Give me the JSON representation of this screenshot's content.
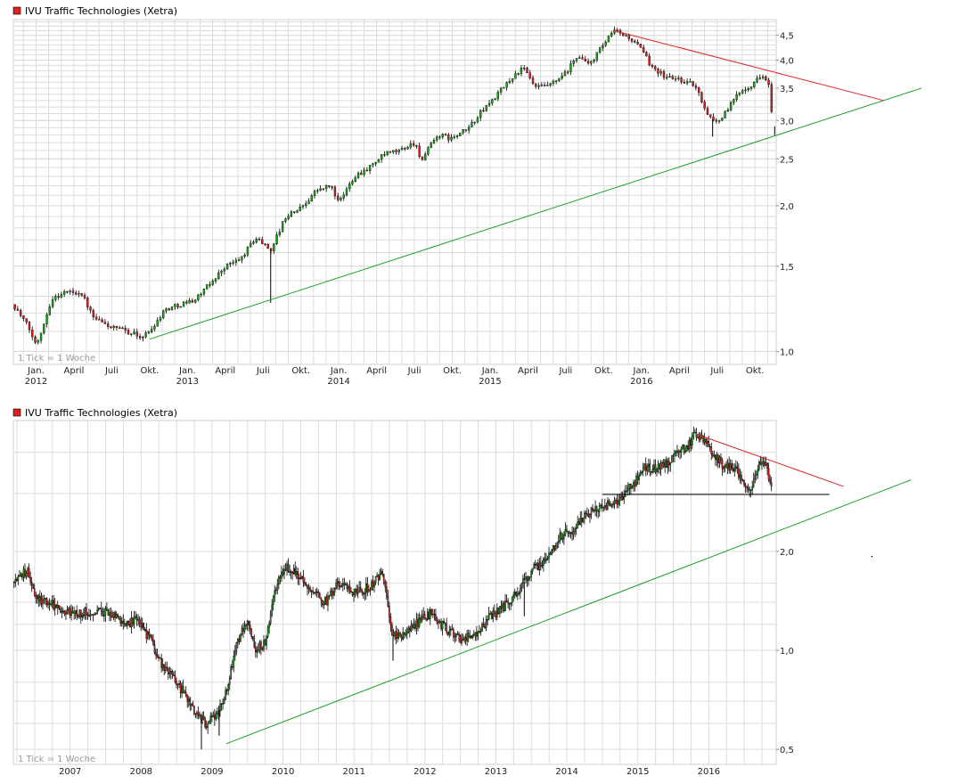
{
  "colors": {
    "grid": "#dcdcdc",
    "frame": "#cfcfcf",
    "up": "#1aaa1a",
    "down": "#dd2222",
    "wick": "#000000",
    "support": "#1aa02a",
    "resistance": "#dd2222",
    "level": "#000000",
    "legend_box": "#e02020"
  },
  "chart_data": [
    {
      "type": "candlestick",
      "title": "IVU Traffic Technologies (Xetra)",
      "note": "1 Tick = 1 Woche",
      "scale": "log",
      "ylim": [
        0.94,
        4.85
      ],
      "y_ticks": [
        {
          "value": 1.0,
          "label": "1,0"
        },
        {
          "value": 1.5,
          "label": "1,5"
        },
        {
          "value": 2.0,
          "label": "2,0"
        },
        {
          "value": 2.5,
          "label": "2,5"
        },
        {
          "value": 3.0,
          "label": "3,0"
        },
        {
          "value": 3.5,
          "label": "3,5"
        },
        {
          "value": 4.0,
          "label": "4,0"
        },
        {
          "value": 4.5,
          "label": "4,5"
        }
      ],
      "x_range": [
        2011.85,
        2016.89
      ],
      "x_ticks": [
        {
          "x": 2012.0,
          "label": "Jan.",
          "year": "2012"
        },
        {
          "x": 2012.25,
          "label": "April",
          "year": ""
        },
        {
          "x": 2012.5,
          "label": "Juli",
          "year": ""
        },
        {
          "x": 2012.75,
          "label": "Okt.",
          "year": ""
        },
        {
          "x": 2013.0,
          "label": "Jan.",
          "year": "2013"
        },
        {
          "x": 2013.25,
          "label": "April",
          "year": ""
        },
        {
          "x": 2013.5,
          "label": "Juli",
          "year": ""
        },
        {
          "x": 2013.75,
          "label": "Okt.",
          "year": ""
        },
        {
          "x": 2014.0,
          "label": "Jan.",
          "year": "2014"
        },
        {
          "x": 2014.25,
          "label": "April",
          "year": ""
        },
        {
          "x": 2014.5,
          "label": "Juli",
          "year": ""
        },
        {
          "x": 2014.75,
          "label": "Okt.",
          "year": ""
        },
        {
          "x": 2015.0,
          "label": "Jan.",
          "year": "2015"
        },
        {
          "x": 2015.25,
          "label": "April",
          "year": ""
        },
        {
          "x": 2015.5,
          "label": "Juli",
          "year": ""
        },
        {
          "x": 2015.75,
          "label": "Okt.",
          "year": ""
        },
        {
          "x": 2016.0,
          "label": "Jan.",
          "year": "2016"
        },
        {
          "x": 2016.25,
          "label": "April",
          "year": ""
        },
        {
          "x": 2016.5,
          "label": "Juli",
          "year": ""
        },
        {
          "x": 2016.75,
          "label": "Okt.",
          "year": ""
        }
      ],
      "path": [
        [
          2011.85,
          1.25
        ],
        [
          2011.95,
          1.12
        ],
        [
          2012.0,
          1.03
        ],
        [
          2012.05,
          1.14
        ],
        [
          2012.1,
          1.28
        ],
        [
          2012.2,
          1.33
        ],
        [
          2012.3,
          1.32
        ],
        [
          2012.38,
          1.17
        ],
        [
          2012.5,
          1.12
        ],
        [
          2012.6,
          1.1
        ],
        [
          2012.7,
          1.07
        ],
        [
          2012.75,
          1.1
        ],
        [
          2012.85,
          1.22
        ],
        [
          2012.95,
          1.25
        ],
        [
          2013.05,
          1.28
        ],
        [
          2013.15,
          1.38
        ],
        [
          2013.25,
          1.5
        ],
        [
          2013.35,
          1.55
        ],
        [
          2013.45,
          1.72
        ],
        [
          2013.55,
          1.62
        ],
        [
          2013.65,
          1.9
        ],
        [
          2013.75,
          1.98
        ],
        [
          2013.85,
          2.15
        ],
        [
          2013.95,
          2.2
        ],
        [
          2014.0,
          2.02
        ],
        [
          2014.1,
          2.3
        ],
        [
          2014.2,
          2.4
        ],
        [
          2014.3,
          2.55
        ],
        [
          2014.4,
          2.6
        ],
        [
          2014.5,
          2.7
        ],
        [
          2014.55,
          2.48
        ],
        [
          2014.65,
          2.8
        ],
        [
          2014.75,
          2.75
        ],
        [
          2014.85,
          2.88
        ],
        [
          2014.95,
          3.15
        ],
        [
          2015.05,
          3.4
        ],
        [
          2015.15,
          3.7
        ],
        [
          2015.22,
          3.85
        ],
        [
          2015.3,
          3.5
        ],
        [
          2015.4,
          3.55
        ],
        [
          2015.5,
          3.75
        ],
        [
          2015.58,
          4.1
        ],
        [
          2015.65,
          3.9
        ],
        [
          2015.75,
          4.3
        ],
        [
          2015.82,
          4.6
        ],
        [
          2015.92,
          4.45
        ],
        [
          2016.0,
          4.2
        ],
        [
          2016.05,
          3.95
        ],
        [
          2016.15,
          3.7
        ],
        [
          2016.25,
          3.65
        ],
        [
          2016.35,
          3.55
        ],
        [
          2016.45,
          3.05
        ],
        [
          2016.5,
          2.98
        ],
        [
          2016.55,
          3.1
        ],
        [
          2016.65,
          3.45
        ],
        [
          2016.75,
          3.6
        ],
        [
          2016.8,
          3.75
        ],
        [
          2016.84,
          3.55
        ],
        [
          2016.87,
          2.92
        ]
      ],
      "candle_noise": 0.012,
      "spikes": [
        {
          "x": 2013.55,
          "low": 1.26
        },
        {
          "x": 2016.47,
          "low": 2.78
        },
        {
          "x": 2016.88,
          "low": 2.8
        }
      ],
      "lines": [
        {
          "kind": "support",
          "from": [
            2012.75,
            1.06
          ],
          "to": [
            2017.85,
            3.5
          ]
        },
        {
          "kind": "resistance",
          "from": [
            2015.82,
            4.6
          ],
          "to": [
            2017.6,
            3.3
          ]
        }
      ]
    },
    {
      "type": "candlestick",
      "title": "IVU Traffic Technologies (Xetra)",
      "note": "1 Tick = 1 Woche",
      "scale": "log",
      "ylim": [
        0.45,
        5.0
      ],
      "y_ticks": [
        {
          "value": 0.5,
          "label": "0,5"
        },
        {
          "value": 1.0,
          "label": "1,0"
        },
        {
          "value": 2.0,
          "label": "2,0"
        }
      ],
      "x_range": [
        2006.2,
        2016.95
      ],
      "x_ticks": [
        {
          "x": 2007.0,
          "label": "2007"
        },
        {
          "x": 2008.0,
          "label": "2008"
        },
        {
          "x": 2009.0,
          "label": "2009"
        },
        {
          "x": 2010.0,
          "label": "2010"
        },
        {
          "x": 2011.0,
          "label": "2011"
        },
        {
          "x": 2012.0,
          "label": "2012"
        },
        {
          "x": 2013.0,
          "label": "2013"
        },
        {
          "x": 2014.0,
          "label": "2014"
        },
        {
          "x": 2015.0,
          "label": "2015"
        },
        {
          "x": 2016.0,
          "label": "2016"
        }
      ],
      "path": [
        [
          2006.2,
          1.6
        ],
        [
          2006.4,
          1.75
        ],
        [
          2006.5,
          1.45
        ],
        [
          2006.75,
          1.38
        ],
        [
          2007.0,
          1.3
        ],
        [
          2007.5,
          1.32
        ],
        [
          2007.8,
          1.2
        ],
        [
          2007.95,
          1.25
        ],
        [
          2008.1,
          1.1
        ],
        [
          2008.3,
          0.9
        ],
        [
          2008.5,
          0.8
        ],
        [
          2008.75,
          0.65
        ],
        [
          2008.9,
          0.6
        ],
        [
          2009.05,
          0.62
        ],
        [
          2009.2,
          0.75
        ],
        [
          2009.35,
          1.05
        ],
        [
          2009.5,
          1.25
        ],
        [
          2009.6,
          1.0
        ],
        [
          2009.75,
          1.05
        ],
        [
          2009.9,
          1.55
        ],
        [
          2010.05,
          1.8
        ],
        [
          2010.2,
          1.7
        ],
        [
          2010.4,
          1.5
        ],
        [
          2010.6,
          1.4
        ],
        [
          2010.8,
          1.6
        ],
        [
          2011.0,
          1.48
        ],
        [
          2011.25,
          1.58
        ],
        [
          2011.4,
          1.7
        ],
        [
          2011.55,
          1.1
        ],
        [
          2011.7,
          1.12
        ],
        [
          2011.95,
          1.25
        ],
        [
          2012.1,
          1.3
        ],
        [
          2012.3,
          1.15
        ],
        [
          2012.5,
          1.08
        ],
        [
          2012.7,
          1.1
        ],
        [
          2012.9,
          1.25
        ],
        [
          2013.1,
          1.35
        ],
        [
          2013.3,
          1.5
        ],
        [
          2013.5,
          1.75
        ],
        [
          2013.7,
          1.9
        ],
        [
          2013.9,
          2.2
        ],
        [
          2014.1,
          2.35
        ],
        [
          2014.3,
          2.6
        ],
        [
          2014.5,
          2.7
        ],
        [
          2014.7,
          2.85
        ],
        [
          2014.9,
          3.15
        ],
        [
          2015.1,
          3.6
        ],
        [
          2015.3,
          3.6
        ],
        [
          2015.5,
          3.85
        ],
        [
          2015.7,
          4.2
        ],
        [
          2015.82,
          4.55
        ],
        [
          2016.0,
          4.2
        ],
        [
          2016.2,
          3.65
        ],
        [
          2016.4,
          3.5
        ],
        [
          2016.55,
          3.0
        ],
        [
          2016.7,
          3.6
        ],
        [
          2016.8,
          3.75
        ],
        [
          2016.9,
          2.95
        ]
      ],
      "candle_noise": 0.035,
      "spikes": [
        {
          "x": 2008.85,
          "low": 0.5
        },
        {
          "x": 2009.1,
          "low": 0.55
        },
        {
          "x": 2011.55,
          "low": 0.93
        },
        {
          "x": 2013.4,
          "low": 1.27
        }
      ],
      "lines": [
        {
          "kind": "support",
          "from": [
            2009.2,
            0.52
          ],
          "to": [
            2018.85,
            3.3
          ]
        },
        {
          "kind": "resistance",
          "from": [
            2015.82,
            4.55
          ],
          "to": [
            2017.9,
            3.15
          ]
        },
        {
          "kind": "level",
          "from": [
            2014.5,
            2.98
          ],
          "to": [
            2017.7,
            2.98
          ]
        }
      ],
      "marker": {
        "x": 2018.3,
        "value": 1.93
      }
    }
  ]
}
